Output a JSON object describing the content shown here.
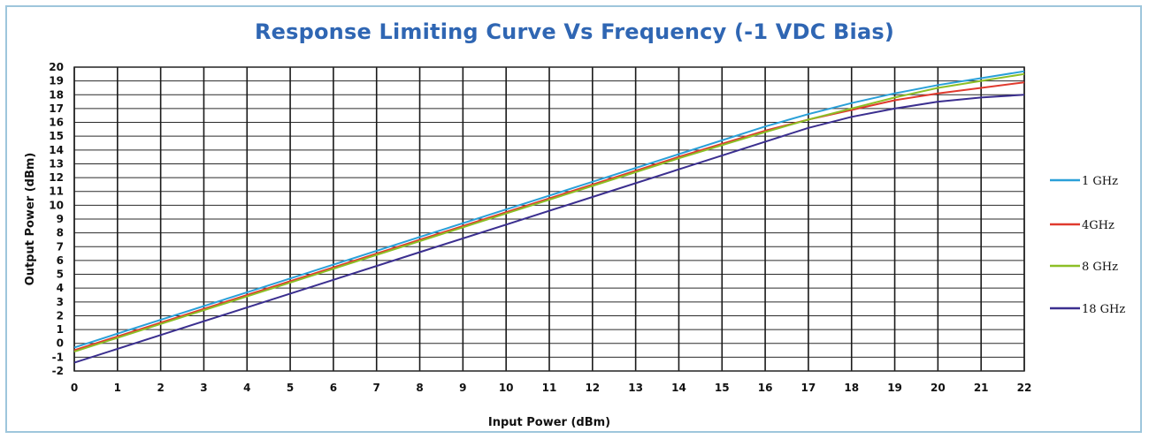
{
  "chart_data": {
    "type": "line",
    "title": "Response Limiting Curve Vs Frequency (-1 VDC Bias)",
    "xlabel": "Input Power (dBm)",
    "ylabel": "Output Power (dBm)",
    "xlim": [
      0,
      22
    ],
    "ylim": [
      -2,
      20
    ],
    "x_ticks": [
      "0",
      "1",
      "2",
      "3",
      "4",
      "5",
      "6",
      "7",
      "8",
      "9",
      "10",
      "11",
      "12",
      "13",
      "14",
      "15",
      "16",
      "17",
      "18",
      "19",
      "20",
      "21",
      "22"
    ],
    "y_ticks": [
      "-2",
      "-1",
      "0",
      "1",
      "2",
      "3",
      "4",
      "5",
      "6",
      "7",
      "8",
      "9",
      "10",
      "11",
      "12",
      "13",
      "14",
      "15",
      "16",
      "17",
      "18",
      "19",
      "20"
    ],
    "grid": true,
    "legend_position": "right",
    "x": [
      0,
      2,
      4,
      6,
      8,
      10,
      12,
      14,
      16,
      17,
      18,
      19,
      20,
      21,
      22
    ],
    "series": [
      {
        "name": "1 GHz",
        "color": "#2aa0d8",
        "values": [
          -0.3,
          1.7,
          3.7,
          5.7,
          7.7,
          9.7,
          11.7,
          13.7,
          15.7,
          16.6,
          17.4,
          18.1,
          18.7,
          19.2,
          19.7
        ]
      },
      {
        "name": "4GHz",
        "color": "#e03a2e",
        "values": [
          -0.5,
          1.5,
          3.5,
          5.5,
          7.5,
          9.5,
          11.5,
          13.5,
          15.4,
          16.2,
          16.9,
          17.6,
          18.1,
          18.5,
          18.9
        ]
      },
      {
        "name": "8 GHz",
        "color": "#8cbf26",
        "values": [
          -0.6,
          1.4,
          3.4,
          5.4,
          7.4,
          9.4,
          11.4,
          13.4,
          15.3,
          16.2,
          17.0,
          17.8,
          18.5,
          19.0,
          19.5
        ]
      },
      {
        "name": "18 GHz",
        "color": "#3b2f8f",
        "values": [
          -1.4,
          0.6,
          2.6,
          4.6,
          6.6,
          8.6,
          10.6,
          12.6,
          14.6,
          15.6,
          16.4,
          17.0,
          17.5,
          17.8,
          18.0
        ]
      }
    ]
  }
}
